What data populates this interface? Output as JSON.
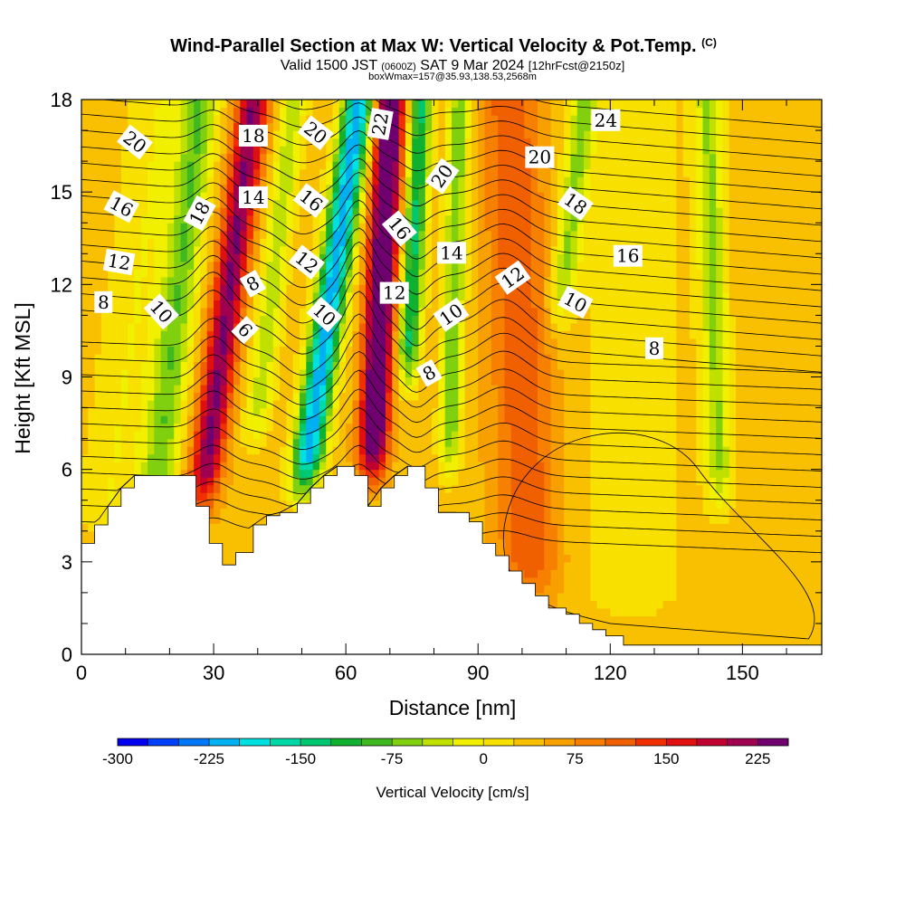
{
  "chart_data": {
    "type": "heatmap",
    "title": "Wind-Parallel Section at Max W: Vertical Velocity & Pot.Temp.",
    "title_mark": "(C)",
    "subtitle_parts": [
      "Valid 1500 JST",
      "(0600Z)",
      "SAT 9 Mar 2024",
      "[12hrFcst@2150z]"
    ],
    "subtitle2": "boxWmax=157@35.93,138.53,2568m",
    "xlabel": "Distance [nm]",
    "ylabel": "Height [Kft MSL]",
    "xlim": [
      0,
      168
    ],
    "ylim": [
      0,
      18
    ],
    "xticks": [
      0,
      30,
      60,
      90,
      120,
      150
    ],
    "yticks": [
      0,
      3,
      6,
      9,
      12,
      15,
      18
    ],
    "colorbar": {
      "title": "Vertical Velocity [cm/s]",
      "min": -300,
      "max": 250,
      "step": 25,
      "tick_values": [
        -300,
        -225,
        -150,
        -75,
        0,
        75,
        150,
        225
      ],
      "tick_labels": [
        "-300",
        "-225",
        "-150",
        "-75",
        "0",
        "75",
        "150",
        "225"
      ],
      "colors": [
        "#0000f0",
        "#0040f8",
        "#0078f8",
        "#00b0f0",
        "#00e0e0",
        "#00d8a8",
        "#00c870",
        "#10b030",
        "#40b820",
        "#80d010",
        "#c0e000",
        "#f0f000",
        "#f8e000",
        "#f8c000",
        "#f8a000",
        "#f88000",
        "#f06000",
        "#f03000",
        "#e01010",
        "#c00030",
        "#a00050",
        "#700070"
      ]
    },
    "w_field": {
      "baseline": 40,
      "bands": [
        {
          "x": 10,
          "amp": -40,
          "width": 7,
          "tilt": 0.9,
          "zmin": 3
        },
        {
          "x": 20,
          "amp": -110,
          "width": 4,
          "tilt": 0.8,
          "zmin": 3
        },
        {
          "x": 31,
          "amp": 190,
          "width": 3.5,
          "tilt": 0.9,
          "zmin": 4
        },
        {
          "x": 41,
          "amp": -80,
          "width": 3,
          "tilt": 0.8,
          "zmin": 6
        },
        {
          "x": 54,
          "amp": -260,
          "width": 3.5,
          "tilt": 1.0,
          "zmin": 4.5
        },
        {
          "x": 67,
          "amp": 260,
          "width": 3.2,
          "tilt": 0.35,
          "zmin": 5
        },
        {
          "x": 74,
          "amp": -170,
          "width": 2.5,
          "tilt": 0.35,
          "zmin": 8
        },
        {
          "x": 84,
          "amp": -110,
          "width": 2.5,
          "tilt": 0.2,
          "zmin": 5
        },
        {
          "x": 100,
          "amp": 80,
          "width": 7,
          "tilt": -0.3,
          "zmin": 1
        },
        {
          "x": 107,
          "amp": -90,
          "width": 3,
          "tilt": 0.8,
          "zmin": 10
        },
        {
          "x": 144,
          "amp": -90,
          "width": 3,
          "tilt": -0.2,
          "zmin": 4
        },
        {
          "x": 125,
          "amp": -25,
          "width": 14,
          "tilt": 0.0,
          "zmin": 0
        }
      ]
    },
    "terrain": {
      "x": [
        0,
        3,
        6,
        9,
        12,
        15,
        26,
        29,
        32,
        35,
        39,
        42,
        45,
        49,
        52,
        55,
        58,
        62,
        65,
        68,
        71,
        74,
        78,
        81,
        85,
        88,
        91,
        94,
        97,
        100,
        103,
        106,
        110,
        113,
        116,
        119,
        123,
        168
      ],
      "height": [
        3.6,
        4.2,
        4.8,
        5.4,
        5.8,
        5.8,
        4.8,
        3.6,
        2.9,
        3.3,
        4.2,
        4.5,
        4.6,
        4.9,
        5.4,
        5.8,
        6.1,
        5.8,
        4.8,
        5.4,
        5.8,
        6.1,
        5.4,
        4.6,
        4.6,
        4.3,
        3.6,
        3.2,
        2.7,
        2.3,
        1.9,
        1.5,
        1.3,
        1.0,
        0.8,
        0.6,
        0.3,
        0.3
      ]
    },
    "theta_contours": {
      "description": "potential temperature contours, interval 2 C",
      "values": [
        4,
        6,
        8,
        10,
        12,
        14,
        16,
        18,
        20,
        22,
        24,
        26
      ]
    },
    "contour_labels": [
      {
        "text": "20",
        "x": 12,
        "y": 16.6,
        "angle": 38
      },
      {
        "text": "16",
        "x": 9,
        "y": 14.5,
        "angle": 28
      },
      {
        "text": "12",
        "x": 8.5,
        "y": 12.7,
        "angle": 10
      },
      {
        "text": "8",
        "x": 5,
        "y": 11.4,
        "angle": 0
      },
      {
        "text": "10",
        "x": 18,
        "y": 11.1,
        "angle": 48
      },
      {
        "text": "18",
        "x": 27,
        "y": 14.3,
        "angle": -62
      },
      {
        "text": "18",
        "x": 39,
        "y": 16.8,
        "angle": 0
      },
      {
        "text": "14",
        "x": 39,
        "y": 14.8,
        "angle": 0
      },
      {
        "text": "8",
        "x": 39,
        "y": 12.0,
        "angle": -30
      },
      {
        "text": "6",
        "x": 37,
        "y": 10.5,
        "angle": 45
      },
      {
        "text": "20",
        "x": 53,
        "y": 16.9,
        "angle": 38
      },
      {
        "text": "16",
        "x": 52,
        "y": 14.7,
        "angle": 38
      },
      {
        "text": "12",
        "x": 51,
        "y": 12.7,
        "angle": 38
      },
      {
        "text": "10",
        "x": 55,
        "y": 11.0,
        "angle": 42
      },
      {
        "text": "22",
        "x": 68,
        "y": 17.2,
        "angle": -80
      },
      {
        "text": "16",
        "x": 72,
        "y": 13.8,
        "angle": 50
      },
      {
        "text": "12",
        "x": 71,
        "y": 11.7,
        "angle": 0
      },
      {
        "text": "8",
        "x": 79,
        "y": 9.1,
        "angle": -30
      },
      {
        "text": "20",
        "x": 82,
        "y": 15.5,
        "angle": -55
      },
      {
        "text": "14",
        "x": 84,
        "y": 13.0,
        "angle": 0
      },
      {
        "text": "10",
        "x": 84,
        "y": 11.0,
        "angle": -35
      },
      {
        "text": "12",
        "x": 98,
        "y": 12.2,
        "angle": -35
      },
      {
        "text": "20",
        "x": 104,
        "y": 16.1,
        "angle": 0
      },
      {
        "text": "18",
        "x": 112,
        "y": 14.6,
        "angle": 35
      },
      {
        "text": "10",
        "x": 112,
        "y": 11.4,
        "angle": 28
      },
      {
        "text": "24",
        "x": 119,
        "y": 17.3,
        "angle": 0
      },
      {
        "text": "16",
        "x": 124,
        "y": 12.9,
        "angle": 0
      },
      {
        "text": "8",
        "x": 130,
        "y": 9.9,
        "angle": 0
      }
    ]
  }
}
